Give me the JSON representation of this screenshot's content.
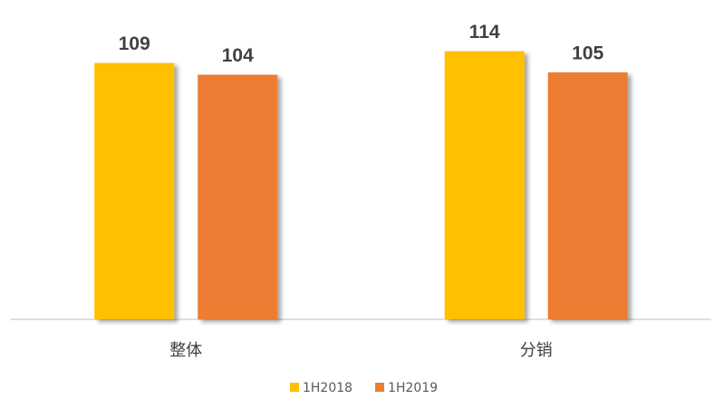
{
  "chart_data": {
    "type": "bar",
    "categories": [
      "整体",
      "分销"
    ],
    "series": [
      {
        "name": "1H2018",
        "color": "#FFC000",
        "values": [
          109,
          114
        ]
      },
      {
        "name": "1H2019",
        "color": "#ED7D31",
        "values": [
          104,
          105
        ]
      }
    ],
    "ylim": [
      0,
      120
    ]
  }
}
